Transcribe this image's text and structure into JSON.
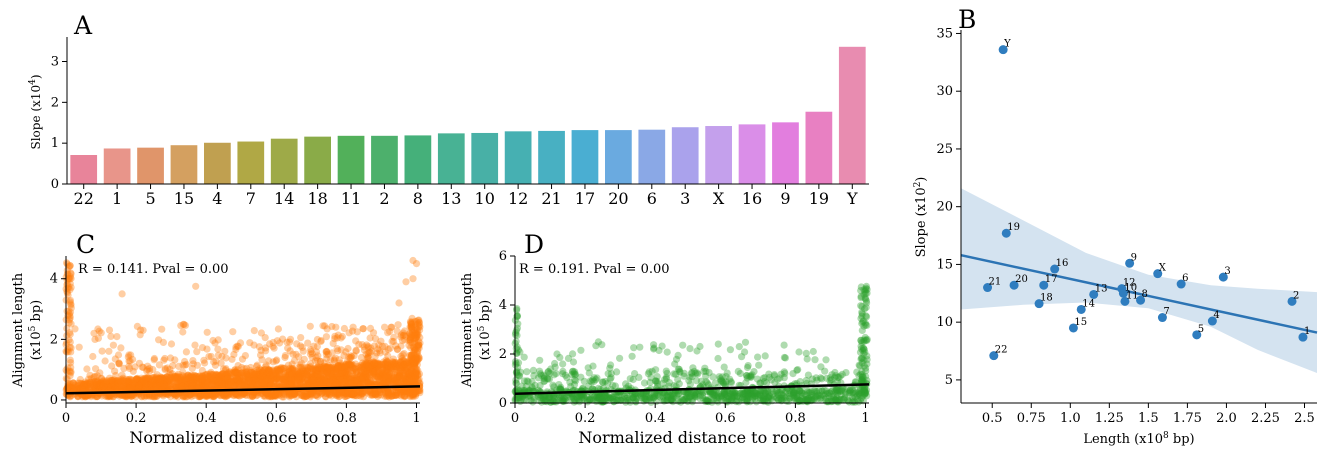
{
  "panels": {
    "a": "A",
    "b": "B",
    "c": "C",
    "d": "D"
  },
  "chart_data": [
    {
      "panel": "A",
      "type": "bar",
      "ylabel": "Slope (x10",
      "ylabel_sup": "4",
      "ylabel_end": ")",
      "ylim": [
        0,
        3.6
      ],
      "yticks": [
        "0",
        "1",
        "2",
        "3"
      ],
      "categories": [
        "22",
        "1",
        "5",
        "15",
        "4",
        "7",
        "14",
        "18",
        "11",
        "2",
        "8",
        "13",
        "10",
        "12",
        "21",
        "17",
        "20",
        "6",
        "3",
        "X",
        "16",
        "9",
        "19",
        "Y"
      ],
      "values": [
        0.71,
        0.87,
        0.89,
        0.95,
        1.01,
        1.04,
        1.11,
        1.16,
        1.18,
        1.18,
        1.19,
        1.24,
        1.25,
        1.29,
        1.3,
        1.32,
        1.32,
        1.33,
        1.39,
        1.42,
        1.46,
        1.51,
        1.77,
        3.36
      ],
      "colors": [
        "#e8849a",
        "#e8958a",
        "#e0956a",
        "#d4a060",
        "#c0a050",
        "#b0a845",
        "#9eaa48",
        "#8aab48",
        "#52b05a",
        "#4db06c",
        "#45b07a",
        "#48b294",
        "#48b0a6",
        "#46b0b2",
        "#48b0c2",
        "#4aaed2",
        "#6aaae0",
        "#8aa8e6",
        "#aaa2ec",
        "#c4a0ec",
        "#da8ee8",
        "#e27ede",
        "#e880c2",
        "#e88cb0"
      ],
      "grid": false
    },
    {
      "panel": "B",
      "type": "scatter",
      "xlabel": "Length (x10",
      "xlabel_sup": "8",
      "xlabel_end": " bp)",
      "ylabel": "Slope (x10",
      "ylabel_sup": "2",
      "ylabel_end": ")",
      "xlim": [
        0.3,
        2.58
      ],
      "ylim": [
        3,
        35.3
      ],
      "xticks": [
        "0.5",
        "0.75",
        "1.0",
        "1.25",
        "1.5",
        "1.75",
        "2.0",
        "2.25",
        "2.5"
      ],
      "yticks": [
        "5",
        "10",
        "15",
        "20",
        "25",
        "30",
        "35"
      ],
      "points": [
        {
          "label": "Y",
          "x": 0.57,
          "y": 33.6
        },
        {
          "label": "19",
          "x": 0.59,
          "y": 17.7
        },
        {
          "label": "16",
          "x": 0.9,
          "y": 14.6
        },
        {
          "label": "9",
          "x": 1.38,
          "y": 15.1
        },
        {
          "label": "X",
          "x": 1.56,
          "y": 14.2
        },
        {
          "label": "6",
          "x": 1.71,
          "y": 13.3
        },
        {
          "label": "3",
          "x": 1.98,
          "y": 13.9
        },
        {
          "label": "21",
          "x": 0.47,
          "y": 13.0
        },
        {
          "label": "20",
          "x": 0.64,
          "y": 13.2
        },
        {
          "label": "17",
          "x": 0.83,
          "y": 13.2
        },
        {
          "label": "13",
          "x": 1.15,
          "y": 12.4
        },
        {
          "label": "12",
          "x": 1.33,
          "y": 12.9
        },
        {
          "label": "10",
          "x": 1.34,
          "y": 12.5
        },
        {
          "label": "11",
          "x": 1.35,
          "y": 11.8
        },
        {
          "label": "8",
          "x": 1.45,
          "y": 11.9
        },
        {
          "label": "18",
          "x": 0.8,
          "y": 11.6
        },
        {
          "label": "14",
          "x": 1.07,
          "y": 11.1
        },
        {
          "label": "15",
          "x": 1.02,
          "y": 9.5
        },
        {
          "label": "7",
          "x": 1.59,
          "y": 10.4
        },
        {
          "label": "4",
          "x": 1.91,
          "y": 10.1
        },
        {
          "label": "5",
          "x": 1.81,
          "y": 8.9
        },
        {
          "label": "2",
          "x": 2.42,
          "y": 11.8
        },
        {
          "label": "1",
          "x": 2.49,
          "y": 8.7
        },
        {
          "label": "22",
          "x": 0.51,
          "y": 7.1
        }
      ],
      "regression": {
        "x": [
          0.3,
          2.58
        ],
        "y": [
          15.8,
          9.1
        ]
      },
      "ci_upper": [
        [
          0.3,
          21.6
        ],
        [
          0.7,
          18.8
        ],
        [
          1.1,
          16.0
        ],
        [
          1.5,
          14.1
        ],
        [
          1.9,
          13.2
        ],
        [
          2.2,
          12.9
        ],
        [
          2.58,
          12.6
        ]
      ],
      "ci_lower": [
        [
          0.3,
          11.1
        ],
        [
          0.7,
          11.5
        ],
        [
          1.1,
          11.7
        ],
        [
          1.5,
          11.2
        ],
        [
          1.9,
          9.6
        ],
        [
          2.2,
          7.6
        ],
        [
          2.58,
          5.6
        ]
      ],
      "point_color": "#2f7dbf",
      "band_color": "#d4e3f0",
      "line_color": "#2c74b4"
    },
    {
      "panel": "C",
      "type": "scatter",
      "annotation": "R = 0.141. Pval = 0.00",
      "xlabel": "Normalized distance to root",
      "ylabel": "Alignment length",
      "ylabel2": "(x10",
      "ylabel2_sup": "5",
      "ylabel2_end": " bp)",
      "xlim": [
        0,
        1.01
      ],
      "ylim": [
        -0.1,
        4.75
      ],
      "xticks": [
        "0",
        "0.2",
        "0.4",
        "0.6",
        "0.8",
        "1"
      ],
      "yticks": [
        "0",
        "2",
        "4"
      ],
      "regression": {
        "x": [
          0,
          1.01
        ],
        "y": [
          0.22,
          0.45
        ]
      },
      "point_color": "#ff7f0e",
      "line_color": "#000000"
    },
    {
      "panel": "D",
      "type": "scatter",
      "annotation": "R = 0.191. Pval = 0.00",
      "xlabel": "Normalized distance to root",
      "ylabel": "Alignment length",
      "ylabel2": "(x10",
      "ylabel2_sup": "5",
      "ylabel2_end": " bp)",
      "xlim": [
        0,
        1.01
      ],
      "ylim": [
        0,
        6
      ],
      "xticks": [
        "0",
        "0.2",
        "0.4",
        "0.6",
        "0.8",
        "1"
      ],
      "yticks": [
        "0",
        "2",
        "4",
        "6"
      ],
      "regression": {
        "x": [
          0,
          1.01
        ],
        "y": [
          0.38,
          0.76
        ]
      },
      "point_color": "#2ca02c",
      "line_color": "#000000"
    }
  ]
}
